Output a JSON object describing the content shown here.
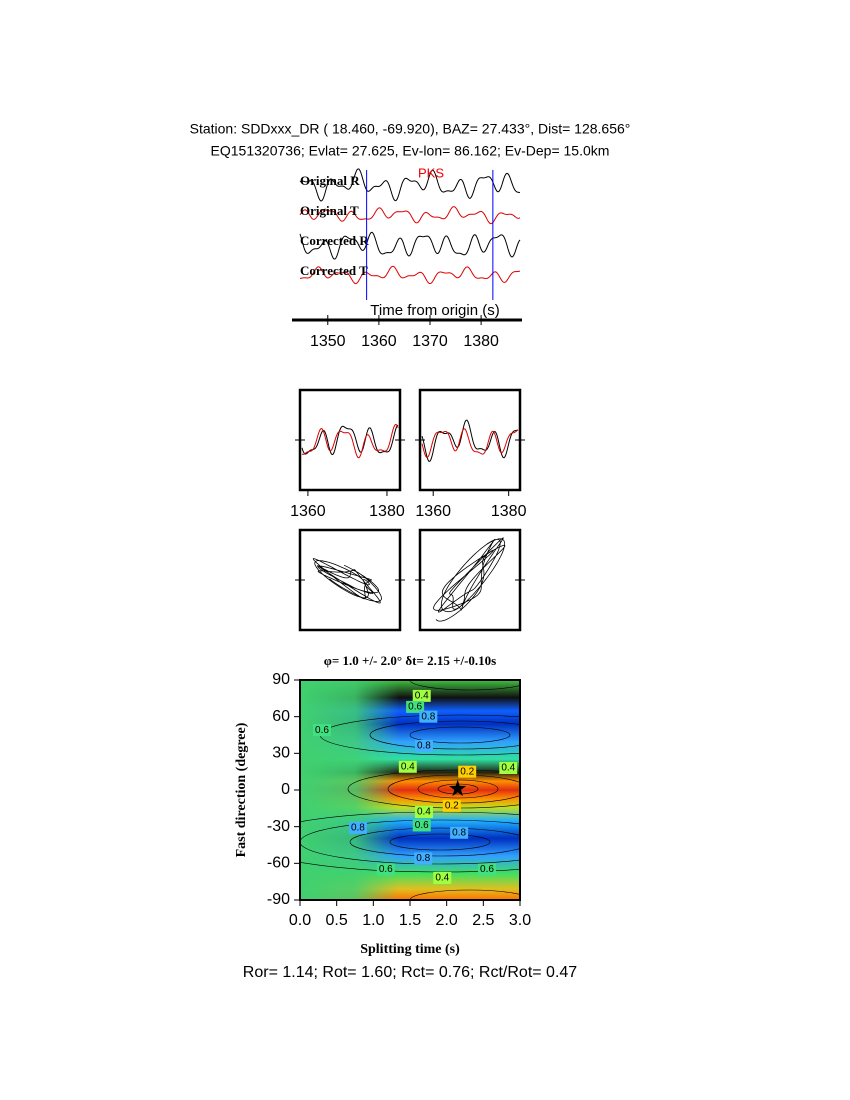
{
  "header": {
    "line1": "Station: SDDxxx_DR (  18.460,  -69.920), BAZ=   27.433°, Dist=  128.656°",
    "line2": "EQ151320736; Evlat=  27.625, Ev-lon=  86.162; Ev-Dep= 15.0km"
  },
  "chart_data": [
    {
      "type": "waveform",
      "labels": [
        "Original R",
        "Original T",
        "Corrected R",
        "Corrected T"
      ],
      "phase": "PKS",
      "xlabel": "Time from origin (s)",
      "xlim": [
        1343,
        1388
      ],
      "xticks": [
        1350,
        1360,
        1370,
        1380
      ],
      "window": [
        1357.6,
        1382.3
      ]
    },
    {
      "type": "waveform-pair",
      "xlim": [
        1358,
        1383.3
      ],
      "xticks": [
        1360,
        1380
      ]
    },
    {
      "type": "waveform-pair",
      "xlim": [
        1356.5,
        1383
      ],
      "xticks": [
        1360,
        1380
      ]
    },
    {
      "type": "particle-motion"
    },
    {
      "type": "contour",
      "title": "φ= 1.0 +/- 2.0° δt= 2.15 +/-0.10s",
      "xlabel": "Splitting time (s)",
      "ylabel": "Fast direction (degree)",
      "xlim": [
        0,
        3
      ],
      "ylim": [
        -90,
        90
      ],
      "xticks": [
        {
          "value": 0,
          "label": "0.0"
        },
        0.5,
        {
          "value": 1,
          "label": "1.0"
        },
        1.5,
        {
          "value": 2,
          "label": "2.0"
        },
        2.5,
        {
          "value": 3,
          "label": "3.0"
        }
      ],
      "yticks": [
        -90,
        -60,
        -30,
        0,
        30,
        60,
        90
      ],
      "best_dt": 2.15,
      "best_phi": 1.0,
      "contour_labels": [
        {
          "x": 1.66,
          "y": 77,
          "level": 0.4
        },
        {
          "x": 1.57,
          "y": 68,
          "level": 0.6
        },
        {
          "x": 1.75,
          "y": 60,
          "level": 0.8
        },
        {
          "x": 0.3,
          "y": 49,
          "level": 0.6
        },
        {
          "x": 1.69,
          "y": 36,
          "level": 0.8
        },
        {
          "x": 1.47,
          "y": 19,
          "level": 0.4
        },
        {
          "x": 2.28,
          "y": 15,
          "level": 0.2
        },
        {
          "x": 2.84,
          "y": 18,
          "level": 0.4
        },
        {
          "x": 2.07,
          "y": -13,
          "level": 0.2
        },
        {
          "x": 1.69,
          "y": -18,
          "level": 0.4
        },
        {
          "x": 1.66,
          "y": -29,
          "level": 0.6
        },
        {
          "x": 0.79,
          "y": -31,
          "level": 0.8
        },
        {
          "x": 2.17,
          "y": -35,
          "level": 0.8
        },
        {
          "x": 1.68,
          "y": -56,
          "level": 0.8
        },
        {
          "x": 1.17,
          "y": -65,
          "level": 0.6
        },
        {
          "x": 1.94,
          "y": -72,
          "level": 0.4
        },
        {
          "x": 2.55,
          "y": -65,
          "level": 0.6
        }
      ]
    }
  ],
  "footer": "Ror= 1.14; Rot= 1.60; Rct= 0.76; Rct/Rot= 0.47"
}
